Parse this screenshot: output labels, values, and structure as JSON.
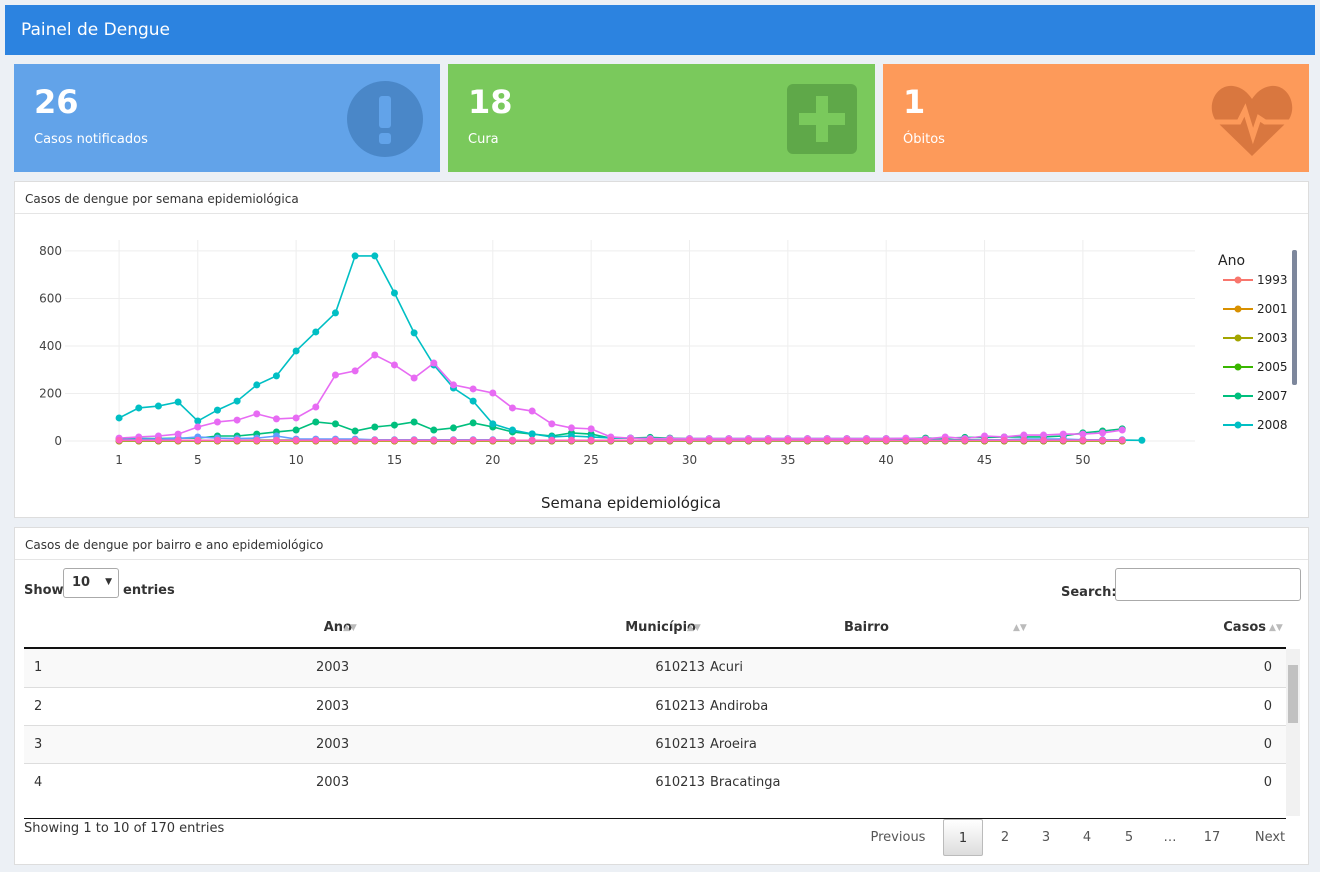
{
  "header": {
    "title": "Painel de Dengue"
  },
  "value_boxes": [
    {
      "value": 26,
      "label": "Casos notificados"
    },
    {
      "value": 18,
      "label": "Cura"
    },
    {
      "value": 1,
      "label": "Óbitos"
    }
  ],
  "chart_panel": {
    "title": "Casos de dengue por semana epidemiológica"
  },
  "chart_data": {
    "type": "line",
    "x_label": "Semana epidemiológica",
    "legend_title": "Ano",
    "x": [
      1,
      2,
      3,
      4,
      5,
      6,
      7,
      8,
      9,
      10,
      11,
      12,
      13,
      14,
      15,
      16,
      17,
      18,
      19,
      20,
      21,
      22,
      23,
      24,
      25,
      26,
      27,
      28,
      29,
      30,
      31,
      32,
      33,
      34,
      35,
      36,
      37,
      38,
      39,
      40,
      41,
      42,
      43,
      44,
      45,
      46,
      47,
      48,
      49,
      50,
      51,
      52,
      53
    ],
    "xlim": [
      -1.75,
      55.7
    ],
    "xticks": [
      1,
      5,
      10,
      15,
      20,
      25,
      30,
      35,
      40,
      45,
      50
    ],
    "ylim": [
      -59,
      846
    ],
    "yticks": [
      0,
      200,
      400,
      600,
      800
    ],
    "grid": true,
    "series": [
      {
        "name": "1993",
        "color": "#f8766d",
        "values": [
          5,
          3,
          3,
          2,
          2,
          2,
          1,
          1,
          1,
          1,
          1,
          1,
          1,
          1,
          1,
          1,
          1,
          1,
          1,
          1,
          1,
          1,
          1,
          1,
          1,
          1,
          1,
          1,
          1,
          1,
          1,
          1,
          1,
          1,
          1,
          1,
          1,
          1,
          1,
          1,
          1,
          1,
          1,
          1,
          1,
          1,
          1,
          1,
          1,
          1,
          1,
          1,
          null
        ]
      },
      {
        "name": "2001",
        "color": "#d89000",
        "values": [
          0,
          0,
          0,
          0,
          0,
          0,
          0,
          0,
          0,
          0,
          0,
          0,
          0,
          0,
          0,
          0,
          0,
          0,
          0,
          0,
          0,
          0,
          0,
          0,
          0,
          0,
          0,
          0,
          0,
          0,
          0,
          0,
          0,
          0,
          0,
          0,
          0,
          0,
          0,
          0,
          0,
          0,
          0,
          0,
          0,
          0,
          0,
          0,
          0,
          0,
          0,
          0,
          null
        ]
      },
      {
        "name": "2003",
        "color": "#a3a500",
        "values": [
          0,
          0,
          0,
          0,
          0,
          0,
          0,
          0,
          0,
          0,
          0,
          0,
          0,
          0,
          0,
          0,
          0,
          0,
          0,
          0,
          0,
          0,
          0,
          0,
          0,
          0,
          0,
          0,
          0,
          0,
          0,
          0,
          0,
          0,
          0,
          0,
          0,
          0,
          0,
          0,
          0,
          0,
          0,
          0,
          0,
          0,
          0,
          0,
          0,
          0,
          0,
          0,
          null
        ]
      },
      {
        "name": "2005",
        "color": "#39b600",
        "values": [
          2,
          2,
          2,
          3,
          3,
          3,
          3,
          4,
          4,
          4,
          4,
          4,
          4,
          4,
          4,
          4,
          3,
          3,
          3,
          3,
          2,
          2,
          2,
          2,
          2,
          2,
          2,
          2,
          2,
          2,
          2,
          2,
          2,
          2,
          2,
          2,
          2,
          2,
          2,
          2,
          2,
          2,
          2,
          2,
          2,
          2,
          2,
          2,
          2,
          2,
          2,
          2,
          null
        ]
      },
      {
        "name": "2007",
        "color": "#00bf7d",
        "values": [
          8,
          10,
          10,
          12,
          12,
          21,
          21,
          29,
          38,
          46,
          80,
          72,
          42,
          59,
          67,
          80,
          46,
          55,
          76,
          59,
          38,
          29,
          21,
          34,
          29,
          12,
          12,
          15,
          12,
          10,
          10,
          10,
          10,
          10,
          10,
          10,
          10,
          10,
          10,
          10,
          10,
          12,
          12,
          15,
          15,
          17,
          17,
          17,
          21,
          34,
          42,
          51,
          null
        ]
      },
      {
        "name": "2008",
        "color": "#00bfc4",
        "values": [
          97,
          139,
          147,
          164,
          84,
          130,
          168,
          236,
          274,
          379,
          459,
          539,
          779,
          779,
          623,
          455,
          320,
          223,
          168,
          72,
          46,
          30,
          17,
          21,
          17,
          13,
          12,
          10,
          8,
          8,
          8,
          8,
          7,
          7,
          7,
          6,
          6,
          6,
          6,
          6,
          6,
          6,
          5,
          5,
          5,
          5,
          5,
          5,
          5,
          4,
          4,
          4,
          3
        ]
      },
      {
        "name": null,
        "color": "#619cff",
        "values": [
          5,
          8,
          8,
          10,
          17,
          12,
          10,
          12,
          21,
          8,
          8,
          8,
          8,
          5,
          5,
          5,
          5,
          5,
          5,
          5,
          3,
          3,
          3,
          3,
          3,
          3,
          3,
          3,
          3,
          3,
          3,
          3,
          3,
          3,
          3,
          3,
          3,
          3,
          3,
          3,
          3,
          3,
          3,
          3,
          5,
          5,
          8,
          8,
          8,
          5,
          5,
          5,
          null
        ]
      },
      {
        "name": null,
        "color": "#e76bf3",
        "values": [
          12,
          17,
          21,
          29,
          59,
          80,
          88,
          114,
          93,
          97,
          143,
          278,
          295,
          362,
          320,
          265,
          328,
          236,
          219,
          202,
          139,
          126,
          72,
          55,
          51,
          17,
          12,
          10,
          10,
          10,
          10,
          10,
          10,
          10,
          10,
          10,
          10,
          10,
          10,
          10,
          12,
          8,
          17,
          10,
          21,
          17,
          25,
          25,
          29,
          29,
          34,
          46,
          null
        ]
      },
      {
        "name": null,
        "color": "#ff62bc",
        "values": [
          3,
          3,
          3,
          3,
          3,
          3,
          3,
          3,
          3,
          3,
          3,
          3,
          3,
          3,
          3,
          3,
          3,
          3,
          3,
          3,
          3,
          3,
          3,
          3,
          3,
          3,
          3,
          3,
          3,
          3,
          3,
          3,
          3,
          3,
          3,
          3,
          3,
          3,
          3,
          3,
          3,
          3,
          3,
          3,
          3,
          3,
          3,
          3,
          3,
          3,
          3,
          3,
          null
        ]
      }
    ]
  },
  "table_panel": {
    "title": "Casos de dengue por bairro e ano epidemiológico",
    "length_menu": {
      "before": "Show",
      "value": 10,
      "after": "entries"
    },
    "search": "Search:",
    "columns": [
      "Ano",
      "Município",
      "Bairro",
      "Casos"
    ],
    "rows": [
      [
        1,
        2003,
        610213,
        "Acuri",
        0
      ],
      [
        2,
        2003,
        610213,
        "Andiroba",
        0
      ],
      [
        3,
        2003,
        610213,
        "Aroeira",
        0
      ],
      [
        4,
        2003,
        610213,
        "Bracatinga",
        0
      ]
    ],
    "info": "Showing 1 to 10 of 170 entries",
    "pagination": {
      "previous": "Previous",
      "pages": [
        1,
        2,
        3,
        4,
        5,
        "…",
        17
      ],
      "next": "Next"
    }
  }
}
